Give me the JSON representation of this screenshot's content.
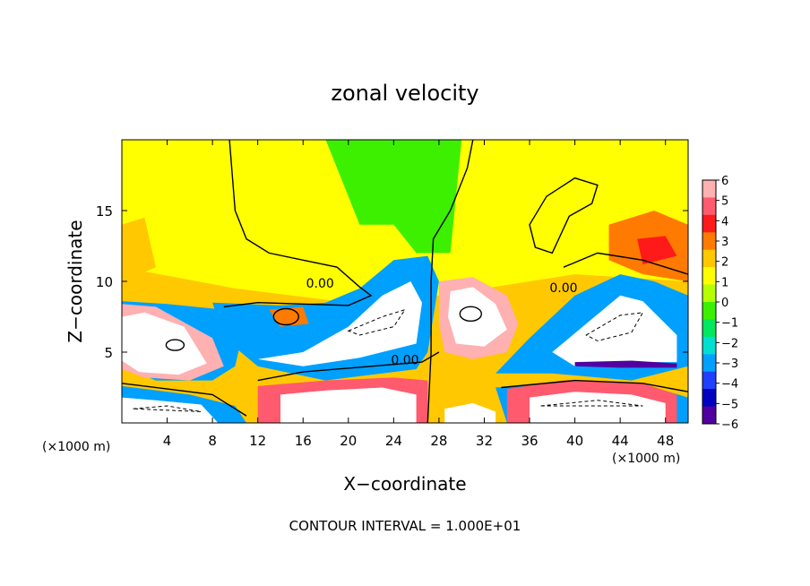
{
  "chart_data": {
    "type": "heatmap",
    "title": "zonal velocity",
    "xlabel": "X−coordinate",
    "ylabel": "Z−coordinate",
    "x_unit_left": "(×1000 m)",
    "x_unit_right": "(×1000 m)",
    "footer": "CONTOUR INTERVAL = 1.000E+01",
    "xlim": [
      0,
      50
    ],
    "ylim": [
      0,
      20
    ],
    "x_ticks": [
      4,
      8,
      12,
      16,
      20,
      24,
      28,
      32,
      36,
      40,
      44,
      48
    ],
    "y_ticks": [
      5,
      10,
      15
    ],
    "contour_labels": [
      {
        "text": "0.00",
        "x": 17.5,
        "y": 9.8
      },
      {
        "text": "0.00",
        "x": 25.0,
        "y": 4.4
      },
      {
        "text": "0.00",
        "x": 39.0,
        "y": 9.5
      }
    ],
    "colorbar": {
      "levels": [
        6,
        5,
        4,
        3,
        2,
        1,
        0,
        -1,
        -2,
        -3,
        -4,
        -5,
        -6
      ],
      "colors": [
        "#ffb0b0",
        "#ff5a6e",
        "#ff1a1a",
        "#ff7a00",
        "#ffc800",
        "#ffff00",
        "#b4ff00",
        "#3cf000",
        "#00e860",
        "#00e0d0",
        "#00a0ff",
        "#2040ff",
        "#0000c0",
        "#5000a0"
      ],
      "over_color": "#ffffff"
    },
    "background_value": 0.5
  }
}
